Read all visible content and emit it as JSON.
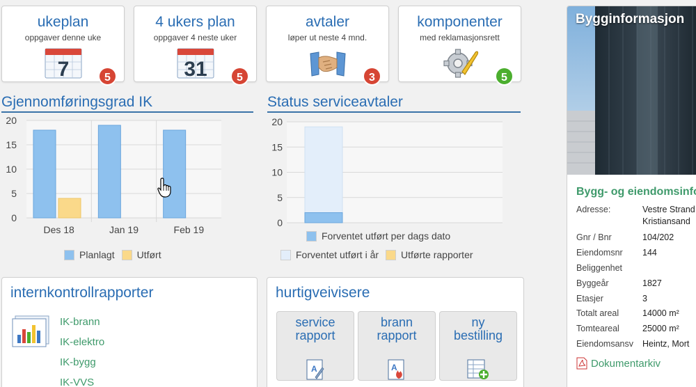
{
  "tiles": [
    {
      "title": "ukeplan",
      "subtitle": "oppgaver denne uke",
      "icon": "calendar-7-icon",
      "icon_text": "7",
      "badge": "5",
      "badge_color": "#d64534"
    },
    {
      "title": "4 ukers plan",
      "subtitle": "oppgaver 4 neste uker",
      "icon": "calendar-31-icon",
      "icon_text": "31",
      "badge": "5",
      "badge_color": "#d64534"
    },
    {
      "title": "avtaler",
      "subtitle": "løper ut neste 4 mnd.",
      "icon": "handshake-icon",
      "badge": "3",
      "badge_color": "#d64534"
    },
    {
      "title": "komponenter",
      "subtitle": "med reklamasjonsrett",
      "icon": "gear-wrench-icon",
      "badge": "5",
      "badge_color": "#4bae2e"
    }
  ],
  "sections": {
    "gjennomforing": "Gjennomføringsgrad IK",
    "status": "Status serviceavtaler"
  },
  "chart_data": [
    {
      "type": "bar",
      "title": "Gjennomføringsgrad IK",
      "categories": [
        "Des 18",
        "Jan 19",
        "Feb 19"
      ],
      "series": [
        {
          "name": "Planlagt",
          "values": [
            18,
            19,
            18
          ],
          "color": "#8ec1ee"
        },
        {
          "name": "Utført",
          "values": [
            4,
            0,
            0
          ],
          "color": "#fad98a"
        }
      ],
      "ylim": [
        0,
        20
      ],
      "yticks": [
        "0",
        "5",
        "10",
        "15",
        "20"
      ],
      "grid": true,
      "legend": "bottom"
    },
    {
      "type": "bar",
      "title": "Status serviceavtaler",
      "categories": [
        ""
      ],
      "series": [
        {
          "name": "Forventet utført per dags dato",
          "values": [
            2
          ],
          "color": "#8ec1ee"
        },
        {
          "name": "Forventet utført i år",
          "values": [
            19
          ],
          "color": "#e3eefa"
        },
        {
          "name": "Utførte rapporter",
          "values": [
            0
          ],
          "color": "#fad98a"
        }
      ],
      "ylim": [
        0,
        20
      ],
      "yticks": [
        "0",
        "5",
        "10",
        "15",
        "20"
      ],
      "grid": true,
      "legend": "bottom"
    }
  ],
  "ik_panel": {
    "title": "internkontrollrapporter",
    "links": [
      "IK-brann",
      "IK-elektro",
      "IK-bygg",
      "IK-VVS"
    ]
  },
  "shortcuts_panel": {
    "title": "hurtigveivisere",
    "buttons": [
      {
        "line1": "service",
        "line2": "rapport"
      },
      {
        "line1": "brann",
        "line2": "rapport"
      },
      {
        "line1": "ny",
        "line2": "bestilling"
      }
    ]
  },
  "building": {
    "title": "Bygginformasjon",
    "info_title": "Bygg- og eiendomsinfo",
    "rows": [
      {
        "k": "Adresse:",
        "v": "Vestre Strand",
        "v2": "Kristiansand"
      },
      {
        "k": "Gnr / Bnr",
        "v": "104/202"
      },
      {
        "k": "Eiendomsnr",
        "v": "144"
      },
      {
        "k": "Beliggenhet",
        "v": ""
      },
      {
        "k": "Byggeår",
        "v": "1827"
      },
      {
        "k": "Etasjer",
        "v": "3"
      },
      {
        "k": "Totalt areal",
        "v": "14000 m²"
      },
      {
        "k": "Tomteareal",
        "v": "25000 m²"
      },
      {
        "k": "Eiendomsansv",
        "v": "Heintz, Mort"
      }
    ],
    "doc_link": "Dokumentarkiv"
  }
}
